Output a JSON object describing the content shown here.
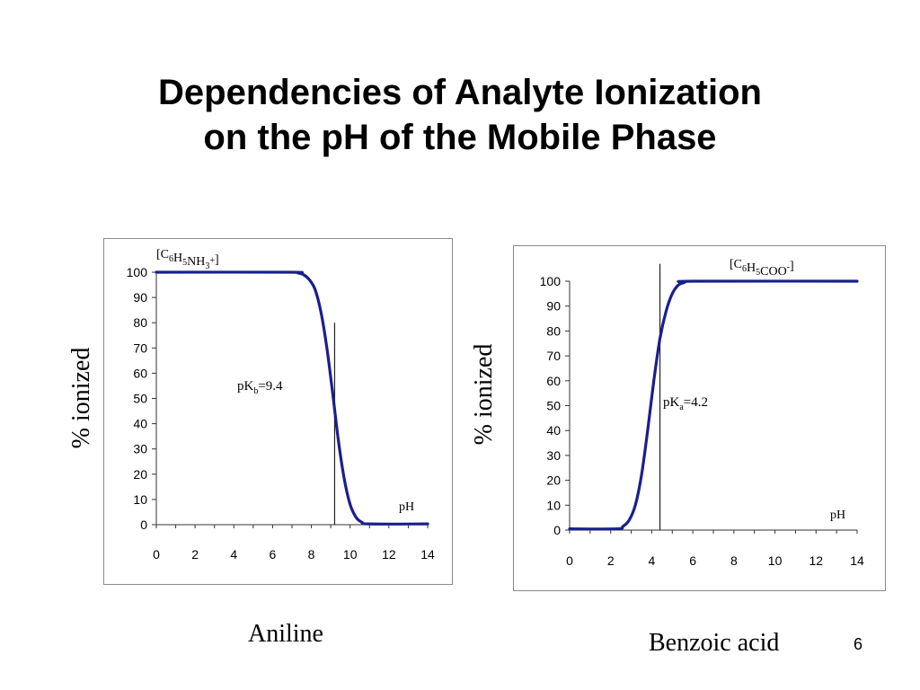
{
  "slide": {
    "title_line1": "Dependencies of Analyte Ionization",
    "title_line2": "on the pH of the Mobile Phase",
    "page_number": "6"
  },
  "chart_data": [
    {
      "type": "line",
      "compound": "Aniline",
      "species": {
        "base": "C",
        "parts": [
          [
            "6",
            "sub"
          ],
          [
            "H",
            ""
          ],
          [
            "5",
            "sub"
          ],
          [
            "NH",
            ""
          ],
          [
            "3",
            "sub"
          ],
          [
            "+",
            "sup"
          ]
        ],
        "open": "[",
        "close": "]"
      },
      "ylabel": "% ionized",
      "x_axis_label": "pH",
      "xticks": [
        0,
        2,
        4,
        6,
        8,
        10,
        12,
        14
      ],
      "yticks": [
        0,
        10,
        20,
        30,
        40,
        50,
        60,
        70,
        80,
        90,
        100
      ],
      "xlim": [
        0,
        14
      ],
      "ylim": [
        0,
        100
      ],
      "pk_label": {
        "main": "pK",
        "sub": "b",
        "value": "=9.4"
      },
      "pk_line_x": 9.2,
      "pk_line_top_y": 80,
      "series": [
        {
          "x": [
            0,
            6.9,
            7.3,
            7.6,
            7.9,
            8.2,
            8.5,
            8.8,
            9.1,
            9.4,
            9.7,
            10.0,
            10.3,
            10.6,
            11.0,
            14
          ],
          "y": [
            100,
            100,
            99.7,
            99,
            97,
            93,
            84,
            70,
            52,
            33,
            18,
            8,
            3,
            1,
            0.3,
            0.3
          ]
        }
      ],
      "line_color": "#1a1f8c"
    },
    {
      "type": "line",
      "compound": "Benzoic acid",
      "species": {
        "base": "C",
        "parts": [
          [
            "6",
            "sub"
          ],
          [
            "H",
            ""
          ],
          [
            "5",
            "sub"
          ],
          [
            "COO",
            ""
          ],
          [
            "-",
            "sup"
          ]
        ],
        "open": "[",
        "close": "]"
      },
      "ylabel": "% ionized",
      "x_axis_label": "pH",
      "xticks": [
        0,
        2,
        4,
        6,
        8,
        10,
        12,
        14
      ],
      "yticks": [
        0,
        10,
        20,
        30,
        40,
        50,
        60,
        70,
        80,
        90,
        100
      ],
      "xlim": [
        0,
        14
      ],
      "ylim": [
        0,
        100
      ],
      "pk_label": {
        "main": "pK",
        "sub": "a",
        "value": "=4.2"
      },
      "pk_line_x": 4.4,
      "pk_line_top_y": 107,
      "series": [
        {
          "x": [
            0,
            2.3,
            2.6,
            2.9,
            3.2,
            3.5,
            3.8,
            4.1,
            4.4,
            4.7,
            5.0,
            5.3,
            5.6,
            6.0,
            14
          ],
          "y": [
            0.5,
            0.5,
            1.5,
            4,
            10,
            22,
            40,
            60,
            77,
            88,
            95,
            98.5,
            99.5,
            100,
            100
          ]
        }
      ],
      "line_color": "#1a1f8c"
    }
  ]
}
